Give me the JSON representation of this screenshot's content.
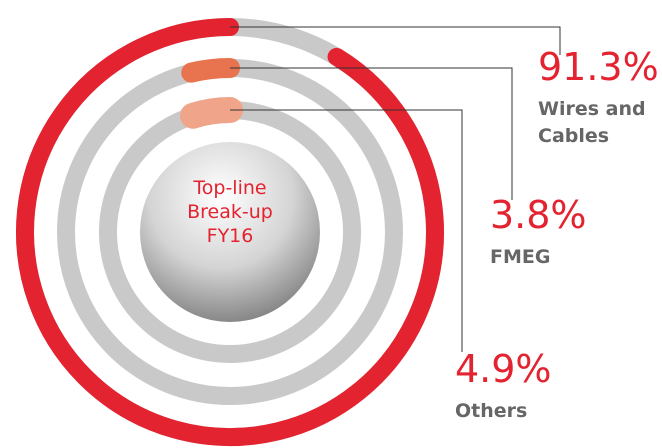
{
  "chart_data": {
    "type": "radial_bar",
    "center_label": [
      "Top-line",
      "Break-up",
      "FY16"
    ],
    "categories": [
      "Wires and Cables",
      "FMEG",
      "Others"
    ],
    "values": [
      91.3,
      3.8,
      4.9
    ],
    "value_labels": [
      "91.3%",
      "3.8%",
      "4.9%"
    ],
    "colors": [
      "#e3232f",
      "#e8744f",
      "#f0a58b"
    ],
    "track_color": "#c9c9c9"
  }
}
